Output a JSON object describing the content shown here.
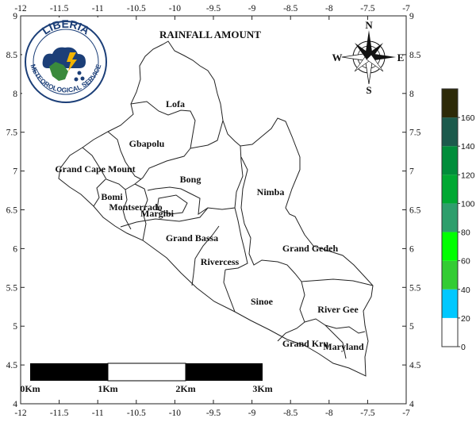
{
  "map": {
    "title": "RAINFALL AMOUNT",
    "x_ticks": [
      "-12",
      "-11.5",
      "-11",
      "-10.5",
      "-10",
      "-9.5",
      "-9",
      "-8.5",
      "-8",
      "-7.5",
      "-7"
    ],
    "y_ticks_left": [
      "9",
      "8.5",
      "8",
      "7.5",
      "7",
      "6.5",
      "6",
      "5.5",
      "5",
      "4.5",
      "4"
    ],
    "y_ticks_right": [
      "9",
      "8.5",
      "8",
      "7.5",
      "7",
      "6.5",
      "6",
      "5.5",
      "5",
      "4.5",
      "4"
    ],
    "counties": [
      {
        "name": "Lofa"
      },
      {
        "name": "Gbapolu"
      },
      {
        "name": "Grand Cape Mount"
      },
      {
        "name": "Bong"
      },
      {
        "name": "Nimba"
      },
      {
        "name": "Bomi"
      },
      {
        "name": "Montserrado"
      },
      {
        "name": "Margibi"
      },
      {
        "name": "Grand Bassa"
      },
      {
        "name": "Rivercess"
      },
      {
        "name": "Grand Gedeh"
      },
      {
        "name": "Sinoe"
      },
      {
        "name": "River Gee"
      },
      {
        "name": "Grand Kru"
      },
      {
        "name": "Maryland"
      }
    ]
  },
  "compass": {
    "n": "N",
    "s": "S",
    "e": "E",
    "w": "W"
  },
  "scale_bar": {
    "labels": [
      "0Km",
      "1Km",
      "2Km",
      "3Km"
    ]
  },
  "colorbar": {
    "labels": [
      "0",
      "20",
      "40",
      "60",
      "80",
      "100",
      "120",
      "140",
      "160"
    ],
    "colors": [
      "#ffffff",
      "#00c8ff",
      "#33cc33",
      "#00ff00",
      "#2e9e6c",
      "#00a832",
      "#008d3a",
      "#1c5a4c",
      "#2d2a08"
    ]
  },
  "logo": {
    "line1": "LIBERIA",
    "line2": "METEOROLOGICAL SERVICE"
  }
}
